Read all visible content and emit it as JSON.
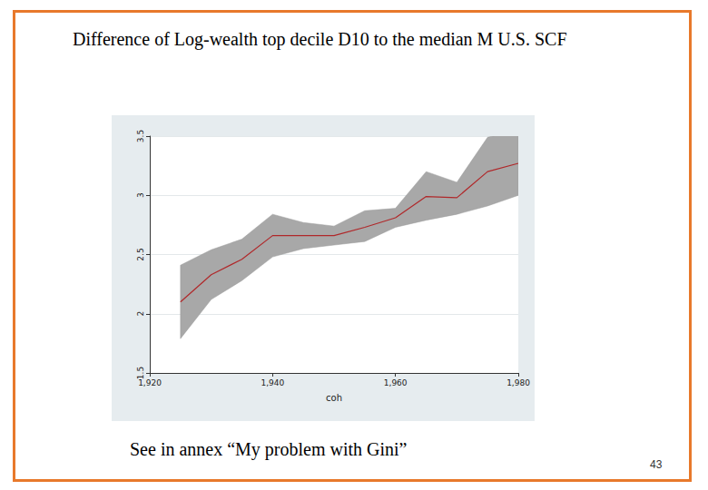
{
  "chart_data": {
    "type": "line",
    "title": "Difference of Log-wealth top decile D10 to the median M U.S. SCF",
    "x_label": "coh",
    "x": [
      1925,
      1930,
      1935,
      1940,
      1945,
      1950,
      1955,
      1960,
      1965,
      1970,
      1975,
      1980
    ],
    "values": [
      2.1,
      2.33,
      2.46,
      2.66,
      2.66,
      2.66,
      2.73,
      2.81,
      2.99,
      2.98,
      3.2,
      3.27
    ],
    "lower": [
      1.79,
      2.12,
      2.28,
      2.48,
      2.55,
      2.58,
      2.61,
      2.73,
      2.79,
      2.84,
      2.91,
      3.0
    ],
    "upper": [
      2.41,
      2.54,
      2.63,
      2.84,
      2.77,
      2.74,
      2.87,
      2.89,
      3.2,
      3.11,
      3.49,
      3.55
    ],
    "color": "#b0282a",
    "xlim": [
      1920,
      1980
    ],
    "xticks": [
      1920,
      1940,
      1960,
      1980
    ],
    "ylim": [
      1.5,
      3.5
    ],
    "yticks": [
      1.5,
      2,
      2.5,
      3,
      3.5
    ],
    "grid": true
  },
  "caption": "See in annex “My problem with Gini”",
  "page_number": "43"
}
